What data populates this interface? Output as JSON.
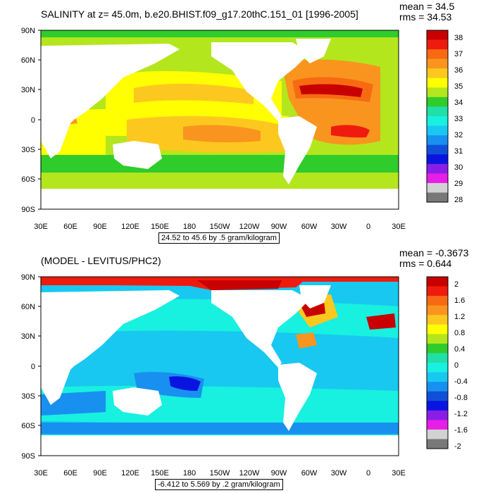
{
  "panels": [
    {
      "title": "SALINITY at z=  45.0m, b.e20.BHIST.f09_g17.20thC.151_01 [1996-2005]",
      "mean_label": "mean = 34.5",
      "rms_label": "rms = 34.53",
      "range_label": "24.52 to 45.6 by .5 gram/kilogram",
      "lat_labels": [
        "90N",
        "60N",
        "30N",
        "0",
        "30S",
        "60S",
        "90S"
      ],
      "lon_labels": [
        "30E",
        "60E",
        "90E",
        "120E",
        "150E",
        "180",
        "150W",
        "120W",
        "90W",
        "60W",
        "30W",
        "0",
        "30E"
      ],
      "colorbar": {
        "labels": [
          "38",
          "37",
          "36",
          "35",
          "34",
          "33",
          "32",
          "31",
          "30",
          "29",
          "28"
        ],
        "colors": [
          "#c80000",
          "#ef1b0e",
          "#f76a12",
          "#f9951e",
          "#fcc81f",
          "#ffff00",
          "#b4e61e",
          "#2fcc2c",
          "#20e0a8",
          "#18f0e0",
          "#18c8f0",
          "#1890f0",
          "#1050d8",
          "#0a14e0",
          "#8a1ee6",
          "#e61ee6",
          "#d2d2d2",
          "#787878"
        ]
      }
    },
    {
      "title": "(MODEL - LEVITUS/PHC2)",
      "mean_label": "mean = -0.3673",
      "rms_label": "rms = 0.644",
      "range_label": "-6.412 to 5.569 by .2 gram/kilogram",
      "lat_labels": [
        "90N",
        "60N",
        "30N",
        "0",
        "30S",
        "60S",
        "90S"
      ],
      "lon_labels": [
        "30E",
        "60E",
        "90E",
        "120E",
        "150E",
        "180",
        "150W",
        "120W",
        "90W",
        "60W",
        "30W",
        "0",
        "30E"
      ],
      "colorbar": {
        "labels": [
          "2",
          "1.6",
          "1.2",
          "0.8",
          "0.4",
          "0",
          "-0.4",
          "-0.8",
          "-1.2",
          "-1.6",
          "-2"
        ],
        "colors": [
          "#c80000",
          "#ef1b0e",
          "#f76a12",
          "#f9951e",
          "#fcc81f",
          "#ffff00",
          "#b4e61e",
          "#2fcc2c",
          "#20e0a8",
          "#18f0e0",
          "#18c8f0",
          "#1890f0",
          "#1050d8",
          "#0a14e0",
          "#8a1ee6",
          "#e61ee6",
          "#d2d2d2",
          "#787878"
        ]
      }
    }
  ]
}
